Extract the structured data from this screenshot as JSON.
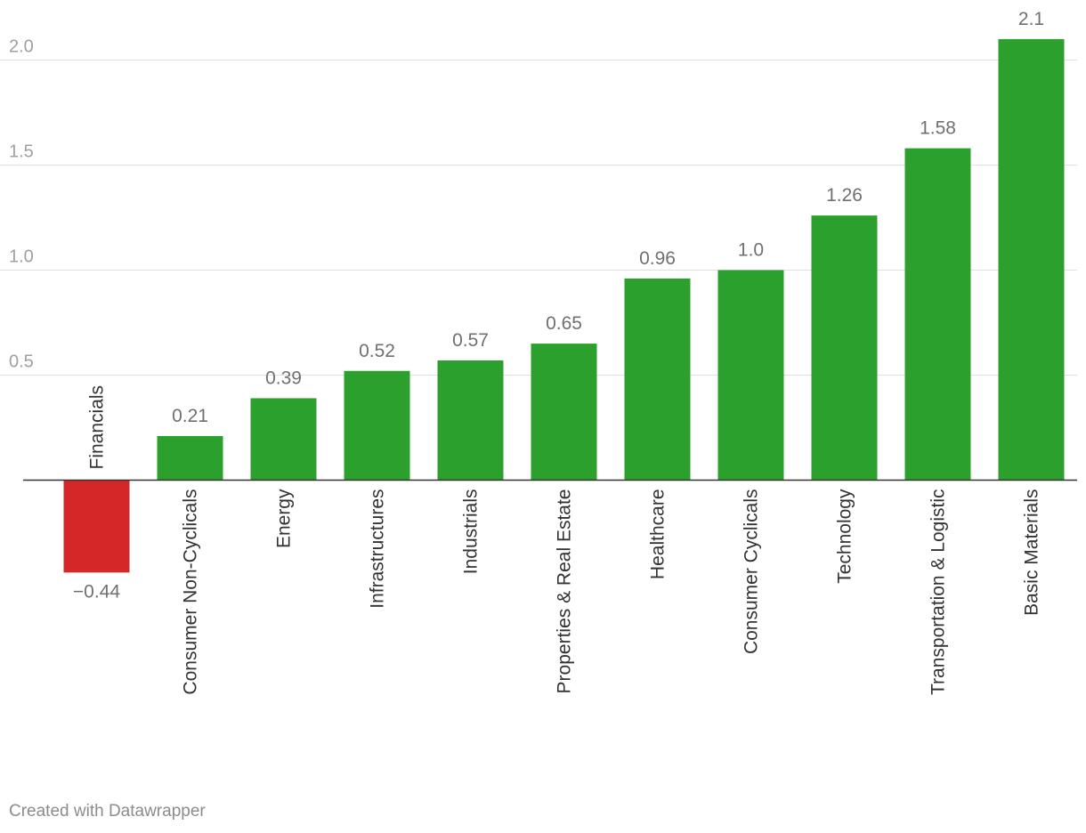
{
  "chart_data": {
    "type": "bar",
    "title": "",
    "xlabel": "",
    "ylabel": "",
    "categories": [
      "Financials",
      "Consumer Non-Cyclicals",
      "Energy",
      "Infrastructures",
      "Industrials",
      "Properties & Real Estate",
      "Healthcare",
      "Consumer Cyclicals",
      "Technology",
      "Transportation & Logistic",
      "Basic Materials"
    ],
    "values": [
      -0.44,
      0.21,
      0.39,
      0.52,
      0.57,
      0.65,
      0.96,
      1.0,
      1.26,
      1.58,
      2.1
    ],
    "value_labels": [
      "−0.44",
      "0.21",
      "0.39",
      "0.52",
      "0.57",
      "0.65",
      "0.96",
      "1.0",
      "1.26",
      "1.58",
      "2.1"
    ],
    "yticks": [
      0.5,
      1.0,
      1.5,
      2.0
    ],
    "ytick_labels": [
      "0.5",
      "1.0",
      "1.5",
      "2.0"
    ],
    "ylim": [
      -0.44,
      2.1
    ],
    "grid": true,
    "colors": {
      "positive": "#2ca02c",
      "negative": "#d62728",
      "grid": "#e0e0e0",
      "baseline": "#333333",
      "value_label": "#707070",
      "tick_label": "#a0a0a0",
      "category_label": "#333333"
    }
  },
  "footer": {
    "credit": "Created with Datawrapper"
  }
}
